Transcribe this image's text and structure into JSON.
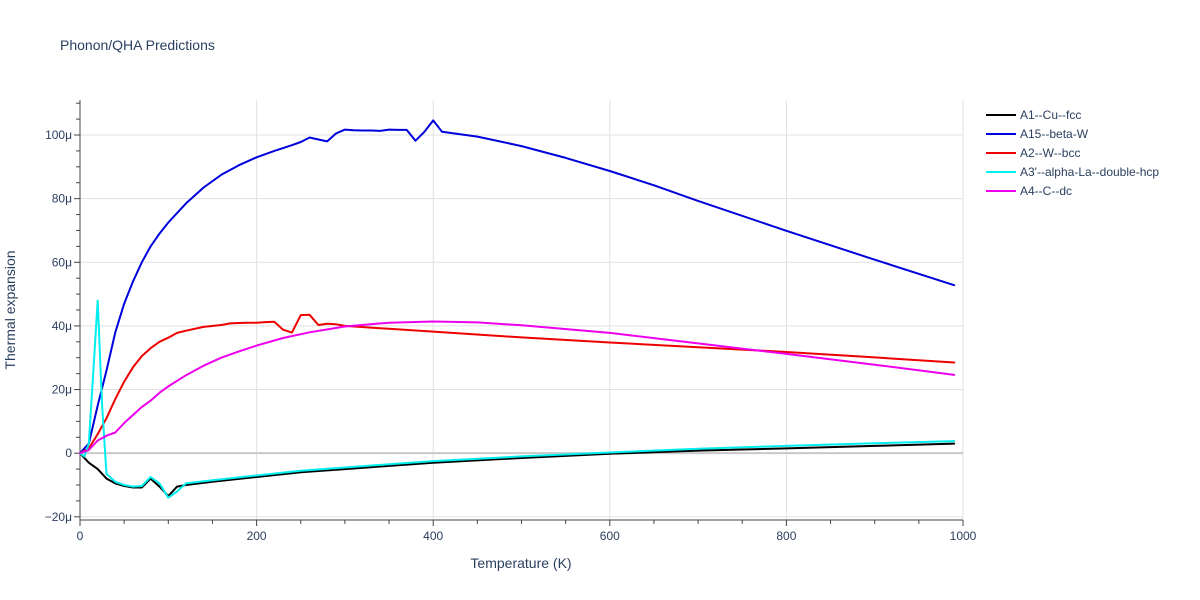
{
  "chart_data": {
    "type": "line",
    "title": "Phonon/QHA Predictions",
    "xlabel": "Temperature (K)",
    "ylabel": "Thermal expansion",
    "xlim": [
      0,
      1000
    ],
    "ylim": [
      -21,
      111
    ],
    "y_unit_suffix": "μ",
    "x_ticks": [
      0,
      200,
      400,
      600,
      800,
      1000
    ],
    "x_tick_labels": [
      "0",
      "200",
      "400",
      "600",
      "800",
      "1000"
    ],
    "y_ticks": [
      -20,
      0,
      20,
      40,
      60,
      80,
      100
    ],
    "y_tick_labels": [
      "−20μ",
      "0",
      "20μ",
      "40μ",
      "60μ",
      "80μ",
      "100μ"
    ],
    "grid": true,
    "legend_position": "top-right",
    "series": [
      {
        "name": "A1--Cu--fcc",
        "color": "#000000",
        "x": [
          0,
          10,
          20,
          30,
          40,
          50,
          60,
          70,
          80,
          90,
          100,
          110,
          120,
          150,
          200,
          250,
          300,
          350,
          400,
          500,
          600,
          700,
          800,
          900,
          990
        ],
        "y": [
          0,
          -3,
          -5,
          -8,
          -9.5,
          -10.3,
          -10.8,
          -10.8,
          -8,
          -10.5,
          -13.5,
          -10.5,
          -10,
          -9,
          -7.5,
          -6,
          -5,
          -4,
          -3,
          -1.5,
          -0.2,
          0.8,
          1.5,
          2.3,
          3
        ]
      },
      {
        "name": "A15--beta-W",
        "color": "#0000dd",
        "x": [
          0,
          10,
          20,
          30,
          40,
          50,
          60,
          70,
          80,
          90,
          100,
          120,
          140,
          160,
          180,
          200,
          220,
          240,
          250,
          260,
          270,
          280,
          290,
          300,
          310,
          320,
          330,
          340,
          350,
          360,
          370,
          380,
          390,
          400,
          410,
          450,
          500,
          550,
          600,
          650,
          700,
          800,
          900,
          990
        ],
        "y": [
          0,
          3,
          15,
          26,
          38,
          47,
          54,
          60,
          65,
          69,
          72.5,
          78.5,
          83.5,
          87.5,
          90.5,
          93,
          95,
          96.8,
          97.8,
          99.2,
          98.6,
          98,
          100.5,
          101.7,
          101.5,
          101.4,
          101.4,
          101.3,
          101.7,
          101.6,
          101.6,
          98.2,
          101,
          104.6,
          101,
          99.5,
          96.5,
          92.8,
          88.7,
          84.2,
          79.3,
          69.9,
          60.8,
          52.8
        ]
      },
      {
        "name": "A2--W--bcc",
        "color": "#ee0000",
        "x": [
          0,
          10,
          20,
          30,
          40,
          50,
          60,
          70,
          80,
          90,
          100,
          110,
          120,
          140,
          160,
          170,
          180,
          190,
          200,
          210,
          220,
          230,
          240,
          250,
          260,
          270,
          280,
          290,
          300,
          350,
          400,
          500,
          600,
          700,
          800,
          900,
          990
        ],
        "y": [
          0,
          1.5,
          6,
          11,
          17,
          22.5,
          27,
          30.5,
          33,
          35,
          36.3,
          37.8,
          38.5,
          39.7,
          40.3,
          40.8,
          40.9,
          41,
          41,
          41.2,
          41.3,
          38.8,
          37.9,
          43.4,
          43.5,
          40.3,
          40.7,
          40.5,
          40,
          39.1,
          38.2,
          36.4,
          34.8,
          33.3,
          31.8,
          30.1,
          28.5
        ]
      },
      {
        "name": "A3'--alpha-La--double-hcp",
        "color": "#00eeee",
        "x": [
          0,
          5,
          10,
          15,
          20,
          25,
          30,
          40,
          50,
          60,
          70,
          80,
          90,
          100,
          110,
          120,
          150,
          200,
          250,
          300,
          350,
          400,
          500,
          600,
          700,
          800,
          900,
          990
        ],
        "y": [
          0,
          -1,
          3,
          25,
          48,
          15,
          -6.5,
          -9,
          -10,
          -10.5,
          -10.3,
          -7.5,
          -9.5,
          -14,
          -12,
          -9.5,
          -8.5,
          -7,
          -5.5,
          -4.5,
          -3.5,
          -2.5,
          -1,
          0.2,
          1.4,
          2.3,
          3.1,
          3.8
        ]
      },
      {
        "name": "A4--C--dc",
        "color": "#ee00ee",
        "x": [
          0,
          10,
          20,
          30,
          40,
          50,
          60,
          70,
          80,
          90,
          100,
          120,
          140,
          160,
          180,
          200,
          230,
          260,
          300,
          350,
          400,
          450,
          500,
          600,
          700,
          800,
          900,
          990
        ],
        "y": [
          0,
          1,
          4,
          5.5,
          6.5,
          9.5,
          12,
          14.5,
          16.5,
          19,
          21,
          24.5,
          27.5,
          30,
          32,
          33.8,
          36.2,
          38,
          39.8,
          41,
          41.4,
          41.1,
          40.2,
          37.8,
          34.5,
          31.2,
          27.8,
          24.6
        ]
      }
    ]
  }
}
